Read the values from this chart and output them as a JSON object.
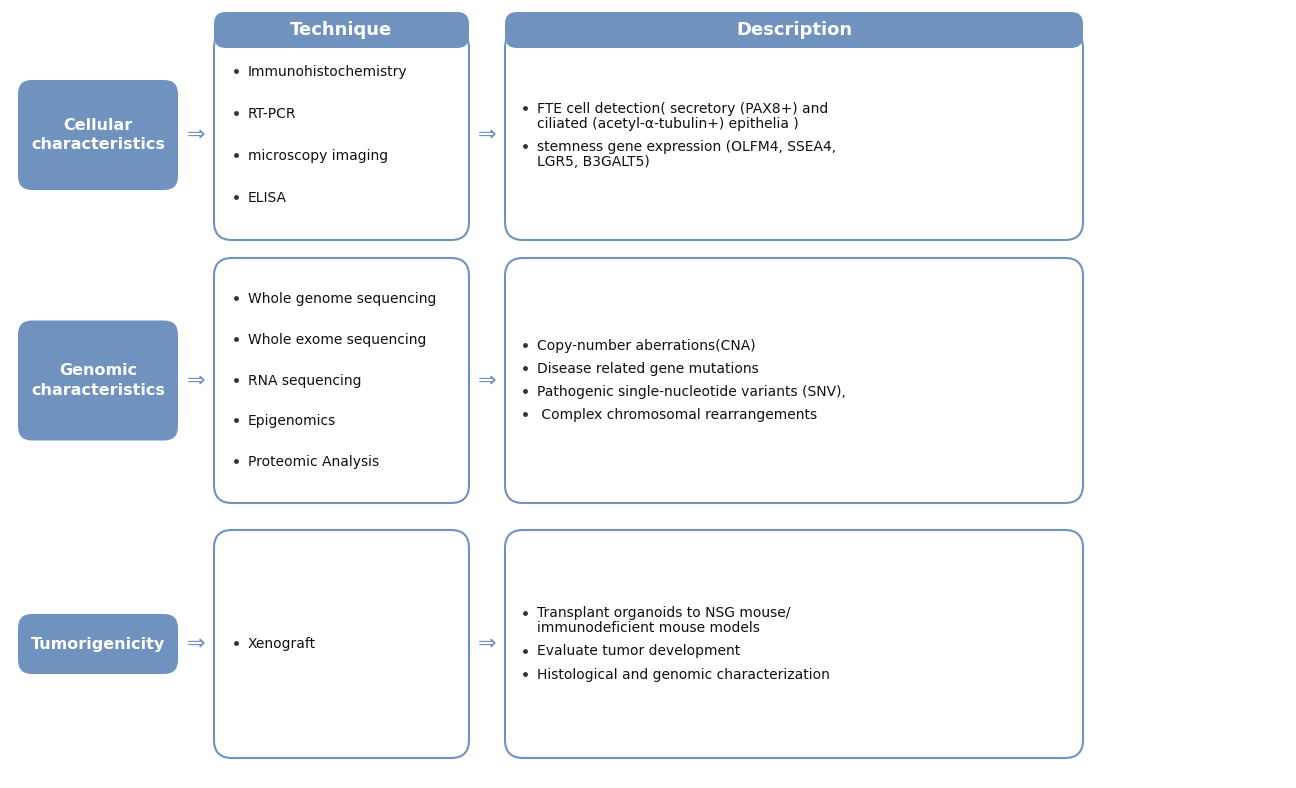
{
  "background_color": "#ffffff",
  "header_bg_color": "#7092be",
  "header_text_color": "#ffffff",
  "left_box_bg_color": "#7092be",
  "left_box_text_color": "#ffffff",
  "tech_box_bg": "#ffffff",
  "tech_box_border": "#7092be",
  "desc_box_bg": "#ffffff",
  "desc_box_border": "#7092be",
  "arrow_color": "#7092be",
  "bullet_color": "#333333",
  "text_color": "#111111",
  "headers": [
    "Technique",
    "Description"
  ],
  "rows": [
    {
      "label": "Cellular\ncharacteristics",
      "technique_lines": [
        "Immunohistochemistry",
        "RT-PCR",
        "microscopy imaging",
        "ELISA"
      ],
      "description_entries": [
        [
          "FTE cell detection( secretory (PAX8+) and",
          "ciliated (acetyl-α-tubulin+) epithelia )"
        ],
        [
          "stemness gene expression (OLFM4, SSEA4,",
          "LGR5, B3GALT5)"
        ]
      ]
    },
    {
      "label": "Genomic\ncharacteristics",
      "technique_lines": [
        "Whole genome sequencing",
        "Whole exome sequencing",
        "RNA sequencing",
        "Epigenomics",
        "Proteomic Analysis"
      ],
      "description_entries": [
        [
          "Copy-number aberrations(CNA)"
        ],
        [
          "Disease related gene mutations"
        ],
        [
          "Pathogenic single-nucleotide variants (SNV),"
        ],
        [
          " Complex chromosomal rearrangements"
        ]
      ]
    },
    {
      "label": "Tumorigenicity",
      "technique_lines": [
        "Xenograft"
      ],
      "description_entries": [
        [
          "Transplant organoids to NSG mouse/",
          "immunodeficient mouse models"
        ],
        [
          "Evaluate tumor development"
        ],
        [
          "Histological and genomic characterization"
        ]
      ]
    }
  ],
  "fig_width": 12.96,
  "fig_height": 7.88,
  "dpi": 100
}
